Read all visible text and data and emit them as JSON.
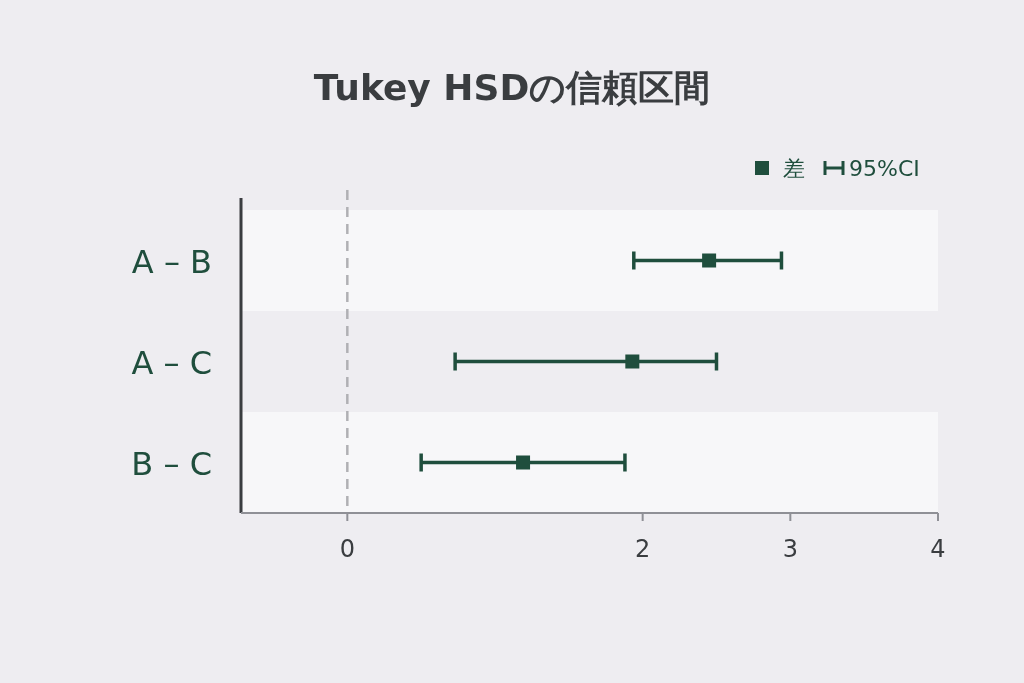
{
  "chart_data": {
    "type": "scatter",
    "orientation": "horizontal",
    "title": "Tukey HSDの信頼区間",
    "categories": [
      "A – B",
      "A – C",
      "B – C"
    ],
    "series": [
      {
        "name": "差",
        "color": "#1f4e3d",
        "values": [
          2.45,
          1.93,
          1.19
        ],
        "errors": [
          [
            1.94,
            2.94
          ],
          [
            0.73,
            2.5
          ],
          [
            0.5,
            1.88
          ]
        ]
      }
    ],
    "annotations": [
      "95%CI"
    ],
    "xlim": [
      -0.72,
      4
    ],
    "xticks": [
      0,
      2,
      3,
      4
    ],
    "ref_lines": [
      {
        "axis": "x",
        "value": 0,
        "color": "#b0b0b4",
        "line_style": "dashed"
      }
    ],
    "marker": "square",
    "legend": "top right",
    "grid": false
  }
}
